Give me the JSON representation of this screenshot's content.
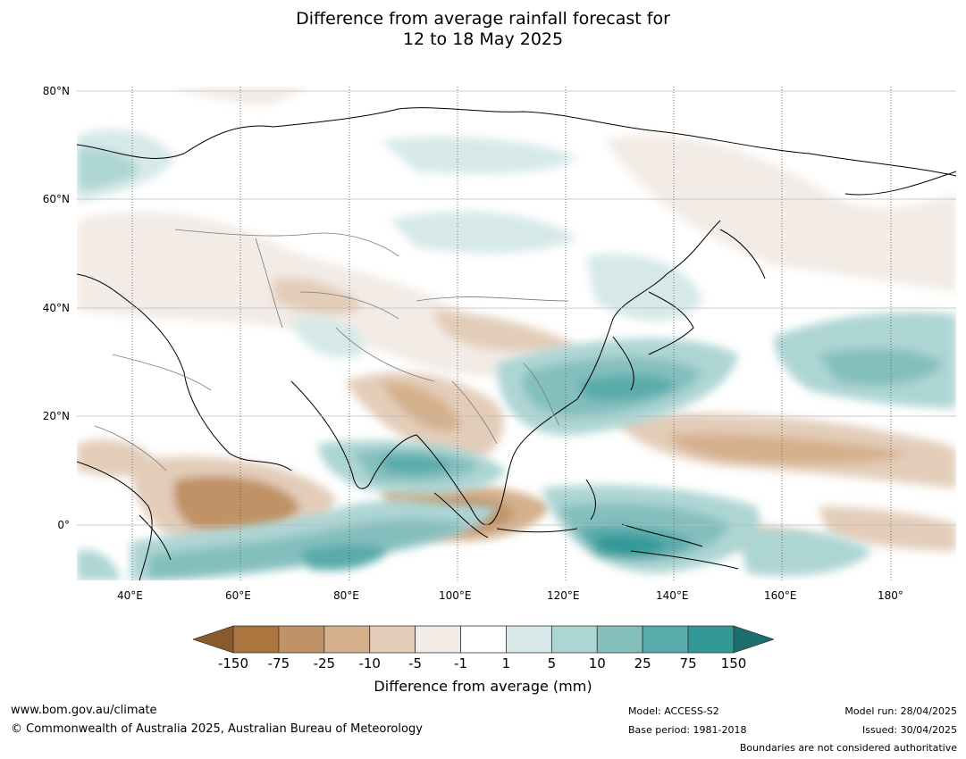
{
  "title": {
    "line1": "Difference from average rainfall forecast for",
    "line2": "12 to 18 May 2025"
  },
  "map": {
    "lat_labels": [
      "80°N",
      "60°N",
      "40°N",
      "20°N",
      "0°"
    ],
    "lon_labels": [
      "40°E",
      "60°E",
      "80°E",
      "100°E",
      "120°E",
      "140°E",
      "160°E",
      "180°"
    ]
  },
  "colorbar": {
    "title": "Difference from average (mm)",
    "ticks": [
      "-150",
      "-75",
      "-25",
      "-10",
      "-5",
      "-1",
      "1",
      "5",
      "10",
      "25",
      "75",
      "150"
    ],
    "colors": [
      "#8b5a2b",
      "#ab7540",
      "#c09265",
      "#d4b08c",
      "#e3cdb9",
      "#f3ebe5",
      "#ffffff",
      "#d6e9e8",
      "#add5d4",
      "#84bfbe",
      "#5aabab",
      "#329997",
      "#1c6f6d"
    ]
  },
  "footer": {
    "url": "www.bom.gov.au/climate",
    "copyright": "© Commonwealth of Australia 2025, Australian Bureau of Meteorology",
    "model": "Model: ACCESS-S2",
    "base_period": "Base period: 1981-2018",
    "model_run": "Model run: 28/04/2025",
    "issued": "Issued: 30/04/2025",
    "disclaimer": "Boundaries are not considered authoritative"
  }
}
